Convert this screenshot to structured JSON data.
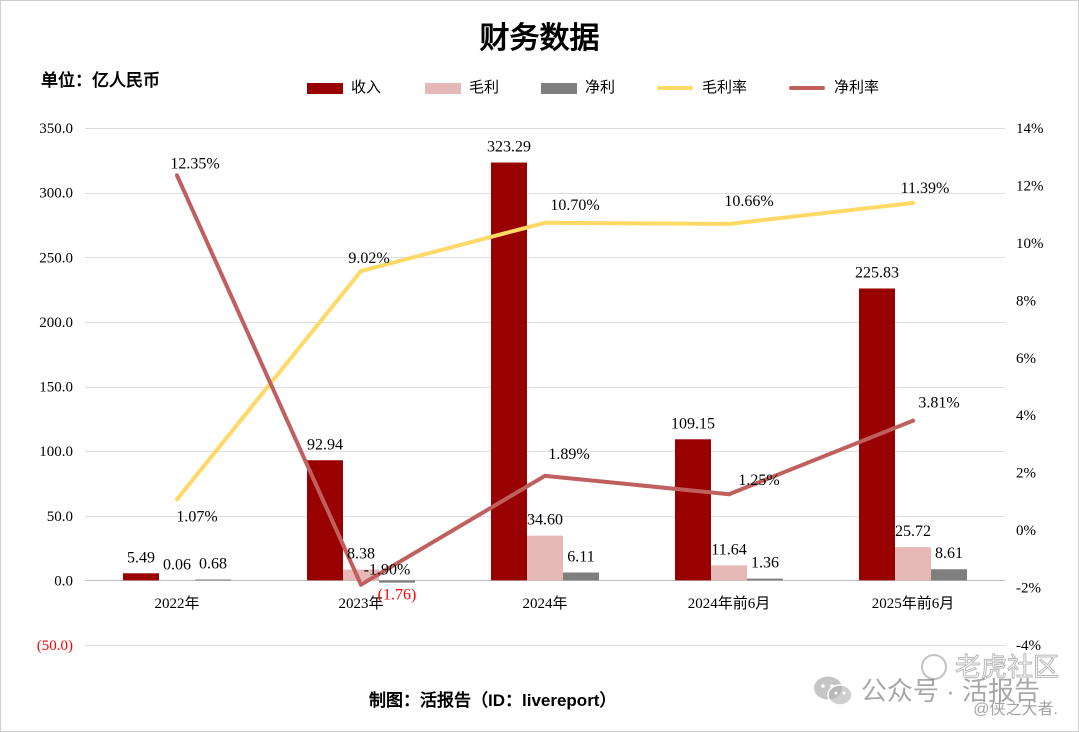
{
  "chart_data": {
    "type": "bar",
    "title": "财务数据",
    "ylabel": "单位：亿人民币",
    "categories": [
      "2022年",
      "2023年",
      "2024年",
      "2024年前6月",
      "2025年前6月"
    ],
    "series": [
      {
        "name": "收入",
        "type": "bar",
        "axis": "left",
        "color": "#990000",
        "values": [
          5.49,
          92.94,
          323.29,
          109.15,
          225.83
        ],
        "labels": [
          "5.49",
          "92.94",
          "323.29",
          "109.15",
          "225.83"
        ]
      },
      {
        "name": "毛利",
        "type": "bar",
        "axis": "left",
        "color": "#e6b8b7",
        "values": [
          0.06,
          8.38,
          34.6,
          11.64,
          25.72
        ],
        "labels": [
          "0.06",
          "8.38",
          "34.60",
          "11.64",
          "25.72"
        ]
      },
      {
        "name": "净利",
        "type": "bar",
        "axis": "left",
        "color": "#7f7f7f",
        "values": [
          0.68,
          -1.76,
          6.11,
          1.36,
          8.61
        ],
        "labels": [
          "0.68",
          "(1.76)",
          "6.11",
          "1.36",
          "8.61"
        ]
      },
      {
        "name": "毛利率",
        "type": "line",
        "axis": "right",
        "color": "#ffd966",
        "values": [
          1.07,
          9.02,
          10.7,
          10.66,
          11.39
        ],
        "labels": [
          "1.07%",
          "9.02%",
          "10.70%",
          "10.66%",
          "11.39%"
        ]
      },
      {
        "name": "净利率",
        "type": "line",
        "axis": "right",
        "color": "#c0605e",
        "values": [
          12.35,
          -1.9,
          1.89,
          1.25,
          3.81
        ],
        "labels": [
          "12.35%",
          "-1.90%",
          "1.89%",
          "1.25%",
          "3.81%"
        ]
      }
    ],
    "y_left": {
      "min": -50,
      "max": 350,
      "step": 50,
      "ticks": [
        350,
        300,
        250,
        200,
        150,
        100,
        50,
        0,
        -50
      ],
      "tick_labels": [
        "350.0",
        "300.0",
        "250.0",
        "200.0",
        "150.0",
        "100.0",
        "50.0",
        "0.0",
        "(50.0)"
      ]
    },
    "y_right": {
      "min": -4,
      "max": 14,
      "step": 2,
      "ticks": [
        14,
        12,
        10,
        8,
        6,
        4,
        2,
        0,
        -2,
        -4
      ],
      "tick_labels": [
        "14%",
        "12%",
        "10%",
        "8%",
        "6%",
        "4%",
        "2%",
        "0%",
        "-2%",
        "-4%"
      ]
    },
    "negative_color": "#ff0000",
    "legend": "top",
    "grid": true
  },
  "footer": "制图：活报告（ID：livereport）",
  "watermark": {
    "community": "老虎社区",
    "logo_icon": "tiger-logo-icon",
    "account": "公众号 · 活报告",
    "icon": "wechat-icon",
    "author": "@侠之大者."
  }
}
